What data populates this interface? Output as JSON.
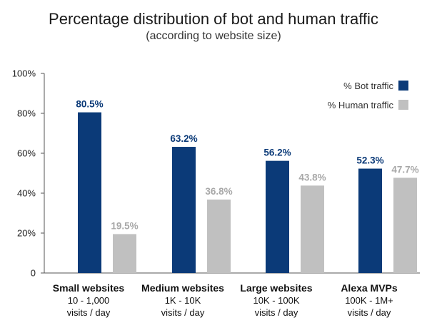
{
  "title": "Percentage distribution of bot and human traffic",
  "subtitle": "(according to website size)",
  "colors": {
    "bot": "#0b3a78",
    "human": "#c0c0c0",
    "axis": "#555555"
  },
  "chart_data": {
    "type": "bar",
    "title": "Percentage distribution of bot and human traffic",
    "subtitle": "(according to website size)",
    "categories": [
      "Small websites",
      "Medium websites",
      "Large websites",
      "Alexa MVPs"
    ],
    "category_sublabels": [
      [
        "10 - 1,000",
        "visits / day"
      ],
      [
        "1K - 10K",
        "visits / day"
      ],
      [
        "10K - 100K",
        "visits / day"
      ],
      [
        "100K - 1M+",
        "visits / day"
      ]
    ],
    "series": [
      {
        "name": "% Bot traffic",
        "values": [
          80.5,
          63.2,
          56.2,
          52.3
        ],
        "labels": [
          "80.5%",
          "63.2%",
          "56.2%",
          "52.3%"
        ]
      },
      {
        "name": "% Human traffic",
        "values": [
          19.5,
          36.8,
          43.8,
          47.7
        ],
        "labels": [
          "19.5%",
          "36.8%",
          "43.8%",
          "47.7%"
        ]
      }
    ],
    "ylim": [
      0,
      100
    ],
    "yticks": [
      0,
      20,
      40,
      60,
      80,
      100
    ],
    "ytick_labels": [
      "0",
      "20%",
      "40%",
      "60%",
      "80%",
      "100%"
    ],
    "xlabel": "",
    "ylabel": "",
    "grid": false,
    "legend": "top-right"
  }
}
